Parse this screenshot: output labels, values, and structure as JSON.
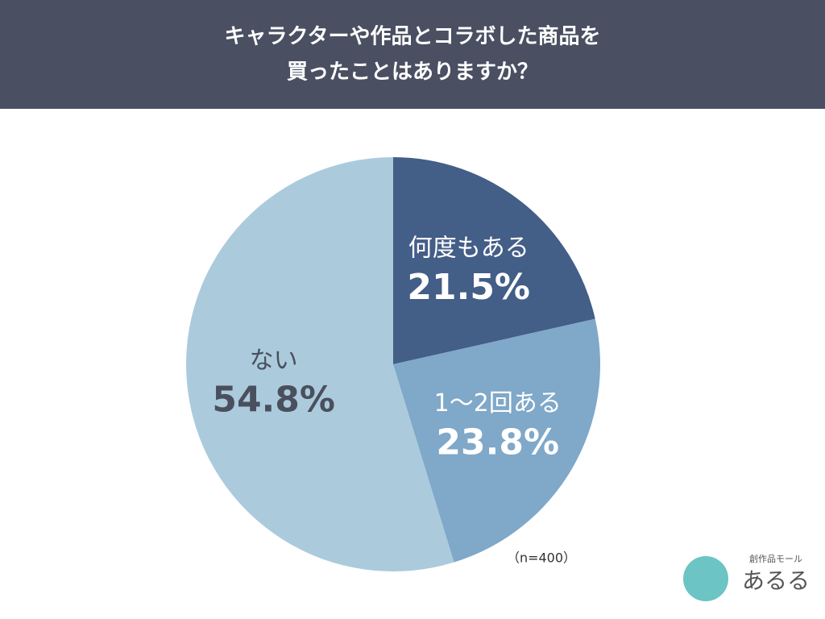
{
  "chart_data": {
    "type": "pie",
    "title_lines": [
      "キャラクターや作品とコラボした商品を",
      "買ったことはありますか？"
    ],
    "categories": [
      "何度もある",
      "1〜2回ある",
      "ない"
    ],
    "values": [
      21.5,
      23.8,
      54.8
    ],
    "value_labels": [
      "21.5%",
      "23.8%",
      "54.8%"
    ],
    "colors": [
      "#435e87",
      "#7fa8c9",
      "#abcbdd"
    ],
    "label_colors": [
      "#ffffff",
      "#ffffff",
      "#4a4f5e"
    ],
    "annotation": "（n=400）"
  },
  "logo": {
    "tagline": "創作品モール",
    "name": "あるる"
  }
}
